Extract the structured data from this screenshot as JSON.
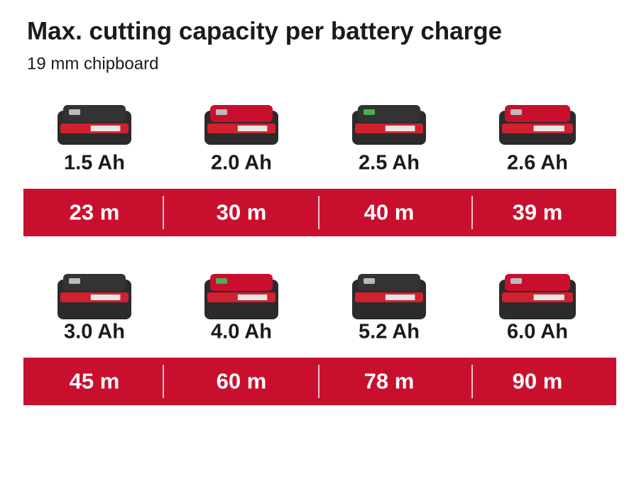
{
  "header": {
    "title": "Max. cutting capacity per battery charge",
    "subtitle": "19 mm chipboard"
  },
  "rows": [
    {
      "items": [
        {
          "capacity": "1.5 Ah",
          "cutting": "23 m"
        },
        {
          "capacity": "2.0 Ah",
          "cutting": "30 m"
        },
        {
          "capacity": "2.5 Ah",
          "cutting": "40 m"
        },
        {
          "capacity": "2.6 Ah",
          "cutting": "39 m"
        }
      ]
    },
    {
      "items": [
        {
          "capacity": "3.0 Ah",
          "cutting": "45 m"
        },
        {
          "capacity": "4.0 Ah",
          "cutting": "60 m"
        },
        {
          "capacity": "5.2 Ah",
          "cutting": "78 m"
        },
        {
          "capacity": "6.0 Ah",
          "cutting": "90 m"
        }
      ]
    }
  ]
}
